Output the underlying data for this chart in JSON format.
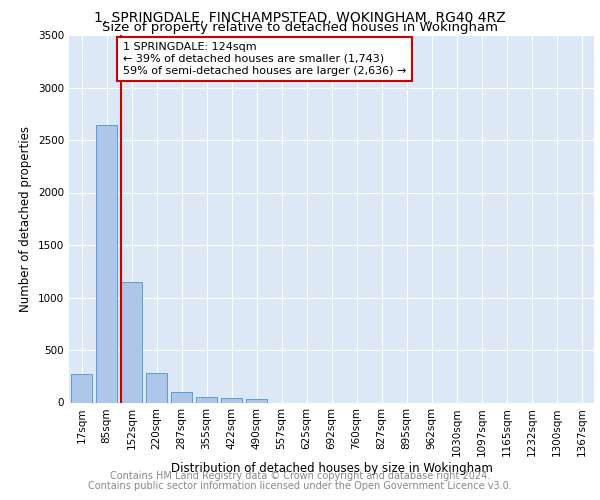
{
  "title_line1": "1, SPRINGDALE, FINCHAMPSTEAD, WOKINGHAM, RG40 4RZ",
  "title_line2": "Size of property relative to detached houses in Wokingham",
  "xlabel": "Distribution of detached houses by size in Wokingham",
  "ylabel": "Number of detached properties",
  "bar_labels": [
    "17sqm",
    "85sqm",
    "152sqm",
    "220sqm",
    "287sqm",
    "355sqm",
    "422sqm",
    "490sqm",
    "557sqm",
    "625sqm",
    "692sqm",
    "760sqm",
    "827sqm",
    "895sqm",
    "962sqm",
    "1030sqm",
    "1097sqm",
    "1165sqm",
    "1232sqm",
    "1300sqm",
    "1367sqm"
  ],
  "bar_values": [
    270,
    2640,
    1150,
    285,
    100,
    55,
    40,
    30,
    0,
    0,
    0,
    0,
    0,
    0,
    0,
    0,
    0,
    0,
    0,
    0,
    0
  ],
  "bar_color": "#aec6e8",
  "bar_edge_color": "#5a9fd4",
  "background_color": "#dce8f5",
  "grid_color": "#ffffff",
  "annotation_text": "1 SPRINGDALE: 124sqm\n← 39% of detached houses are smaller (1,743)\n59% of semi-detached houses are larger (2,636) →",
  "vline_color": "#cc0000",
  "annotation_box_color": "#cc0000",
  "ylim": [
    0,
    3500
  ],
  "footer_line1": "Contains HM Land Registry data © Crown copyright and database right 2024.",
  "footer_line2": "Contains public sector information licensed under the Open Government Licence v3.0.",
  "title_fontsize": 10,
  "subtitle_fontsize": 9.5,
  "axis_label_fontsize": 8.5,
  "tick_fontsize": 7.5,
  "annotation_fontsize": 8,
  "footer_fontsize": 7
}
